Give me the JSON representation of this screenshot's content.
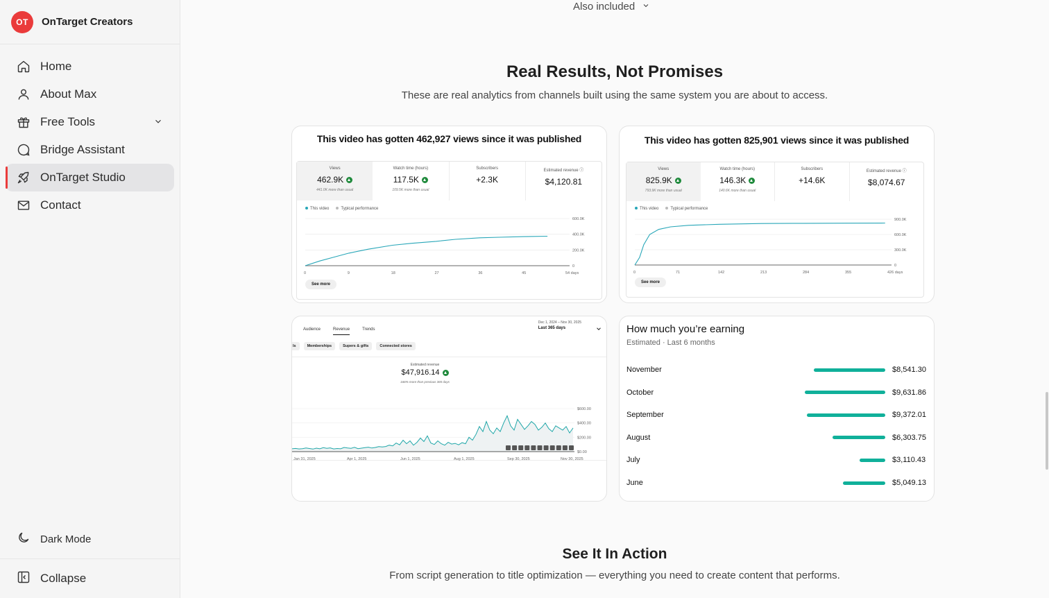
{
  "brand": {
    "logo_text": "OT",
    "name": "OnTarget Creators",
    "logo_color": "#ea3b3b"
  },
  "nav": {
    "items": [
      {
        "label": "Home",
        "icon": "home-icon"
      },
      {
        "label": "About Max",
        "icon": "user-icon"
      },
      {
        "label": "Free Tools",
        "icon": "gift-icon"
      },
      {
        "label": "Bridge Assistant",
        "icon": "chat-bubble-icon"
      },
      {
        "label": "OnTarget Studio",
        "icon": "rocket-icon",
        "active": true
      },
      {
        "label": "Contact",
        "icon": "mail-icon"
      }
    ],
    "dark_mode": "Dark Mode",
    "collapse": "Collapse"
  },
  "also_included": "Also included",
  "results": {
    "title": "Real Results, Not Promises",
    "subtitle": "These are real analytics from channels built using the same system you are about to access."
  },
  "shot1": {
    "title": "This video has gotten 462,927 views since it was published",
    "metrics": [
      {
        "label": "Views",
        "value": "462.9K",
        "sub": "441.0K more than usual",
        "up": true
      },
      {
        "label": "Watch time (hours)",
        "value": "117.5K",
        "sub": "109.5K more than usual",
        "up": true
      },
      {
        "label": "Subscribers",
        "value": "+2.3K",
        "sub": "",
        "up": false
      },
      {
        "label": "Estimated revenue",
        "value": "$4,120.81",
        "sub": "",
        "up": false
      }
    ],
    "legend": [
      "This video",
      "Typical performance"
    ],
    "see_more": "See more",
    "chart_data": {
      "type": "line",
      "x": [
        0,
        9,
        18,
        27,
        36,
        45,
        54
      ],
      "x_ticks": [
        "0",
        "9",
        "18",
        "27",
        "36",
        "45",
        "54 days"
      ],
      "y_ticks": [
        "0",
        "200.0K",
        "400.0K",
        "600.0K"
      ],
      "ylim": [
        0,
        600000
      ],
      "series": [
        {
          "name": "This video",
          "points": [
            [
              0,
              0
            ],
            [
              3,
              60000
            ],
            [
              6,
              110000
            ],
            [
              9,
              160000
            ],
            [
              13,
              210000
            ],
            [
              18,
              260000
            ],
            [
              22,
              285000
            ],
            [
              27,
              310000
            ],
            [
              31,
              335000
            ],
            [
              36,
              355000
            ],
            [
              40,
              362000
            ],
            [
              45,
              370000
            ],
            [
              50,
              375000
            ]
          ]
        }
      ]
    }
  },
  "shot2": {
    "title": "This video has gotten 825,901 views since it was published",
    "metrics": [
      {
        "label": "Views",
        "value": "825.9K",
        "sub": "793.9K more than usual",
        "up": true
      },
      {
        "label": "Watch time (hours)",
        "value": "146.3K",
        "sub": "140.6K more than usual",
        "up": true
      },
      {
        "label": "Subscribers",
        "value": "+14.6K",
        "sub": "",
        "up": false
      },
      {
        "label": "Estimated revenue",
        "value": "$8,074.67",
        "sub": "",
        "up": false
      }
    ],
    "legend": [
      "This video",
      "Typical performance"
    ],
    "see_more": "See more",
    "chart_data": {
      "type": "line",
      "x": [
        0,
        71,
        142,
        213,
        284,
        355,
        426
      ],
      "x_ticks": [
        "0",
        "71",
        "142",
        "213",
        "284",
        "355",
        "426 days"
      ],
      "y_ticks": [
        "0",
        "300.0K",
        "600.0K",
        "900.0K"
      ],
      "ylim": [
        0,
        900000
      ],
      "series": [
        {
          "name": "This video",
          "points": [
            [
              0,
              0
            ],
            [
              8,
              150000
            ],
            [
              15,
              400000
            ],
            [
              25,
              600000
            ],
            [
              40,
              700000
            ],
            [
              60,
              750000
            ],
            [
              90,
              780000
            ],
            [
              142,
              800000
            ],
            [
              213,
              815000
            ],
            [
              284,
              820000
            ],
            [
              355,
              822000
            ],
            [
              420,
              825000
            ]
          ]
        }
      ]
    }
  },
  "revenue_shot": {
    "tabs": [
      "Audience",
      "Revenue",
      "Trends"
    ],
    "active_tab": "Revenue",
    "date_range": "Dec 1, 2024 – Nov 30, 2025",
    "date_label": "Last 365 days",
    "chips": [
      "ls",
      "Memberships",
      "Supers & gifts",
      "Connected stores"
    ],
    "metric_label": "Estimated revenue",
    "metric_value": "$47,916.14",
    "metric_sub": "166% more than previous 365 days",
    "chart_data": {
      "type": "area",
      "x_ticks": [
        "Jan 31, 2025",
        "Apr 1, 2025",
        "Jun 1, 2025",
        "Aug 1, 2025",
        "Sep 30, 2025",
        "Nov 30, 2025"
      ],
      "y_ticks": [
        "$0.00",
        "$200.00",
        "$400.00",
        "$600.00"
      ],
      "ylim": [
        0,
        600
      ],
      "values": [
        40,
        45,
        38,
        42,
        50,
        44,
        36,
        48,
        40,
        55,
        46,
        52,
        38,
        44,
        40,
        58,
        50,
        46,
        60,
        42,
        48,
        55,
        62,
        50,
        58,
        70,
        65,
        72,
        90,
        80,
        120,
        95,
        160,
        110,
        150,
        90,
        130,
        190,
        140,
        220,
        120,
        100,
        150,
        110,
        90,
        130,
        105,
        115,
        95,
        125,
        110,
        200,
        160,
        240,
        350,
        280,
        420,
        300,
        250,
        330,
        280,
        400,
        500,
        360,
        300,
        450,
        380,
        310,
        360,
        420,
        380,
        300,
        340,
        400,
        320,
        280,
        360,
        330,
        300,
        350,
        260,
        330
      ]
    }
  },
  "earnings": {
    "title": "How much you’re earning",
    "subtitle": "Estimated · Last 6 months",
    "color": "#10b09a",
    "chart_data": {
      "type": "bar",
      "categories": [
        "November",
        "October",
        "September",
        "August",
        "July",
        "June"
      ],
      "values": [
        8541.3,
        9631.86,
        9372.01,
        6303.75,
        3110.43,
        5049.13
      ],
      "labels": [
        "$8,541.30",
        "$9,631.86",
        "$9,372.01",
        "$6,303.75",
        "$3,110.43",
        "$5,049.13"
      ]
    }
  },
  "action": {
    "title": "See It In Action",
    "subtitle": "From script generation to title optimization — everything you need to create content that performs."
  }
}
